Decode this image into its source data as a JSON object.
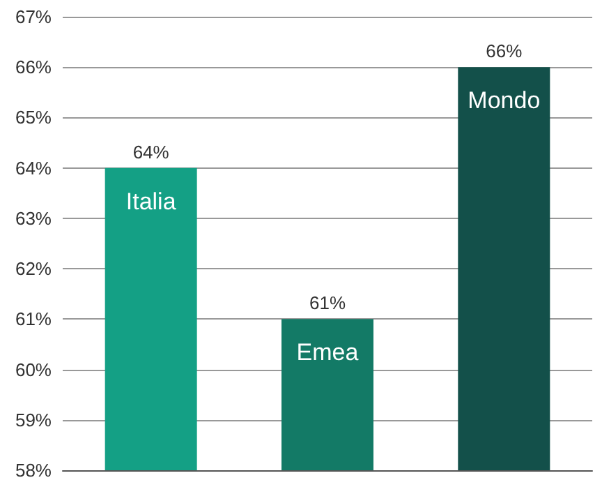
{
  "chart_data": {
    "type": "bar",
    "categories": [
      "Italia",
      "Emea",
      "Mondo"
    ],
    "values": [
      64,
      61,
      66
    ],
    "colors": [
      "#14a085",
      "#137a66",
      "#13504a"
    ],
    "value_labels": [
      "64%",
      "61%",
      "66%"
    ],
    "ylim": [
      58,
      67
    ],
    "yticks": [
      {
        "value": 58,
        "label": "58%"
      },
      {
        "value": 59,
        "label": "59%"
      },
      {
        "value": 60,
        "label": "60%"
      },
      {
        "value": 61,
        "label": "61%"
      },
      {
        "value": 62,
        "label": "62%"
      },
      {
        "value": 63,
        "label": "63%"
      },
      {
        "value": 64,
        "label": "64%"
      },
      {
        "value": 65,
        "label": "65%"
      },
      {
        "value": 66,
        "label": "66%"
      },
      {
        "value": 67,
        "label": "67%"
      }
    ],
    "grid": "y"
  }
}
